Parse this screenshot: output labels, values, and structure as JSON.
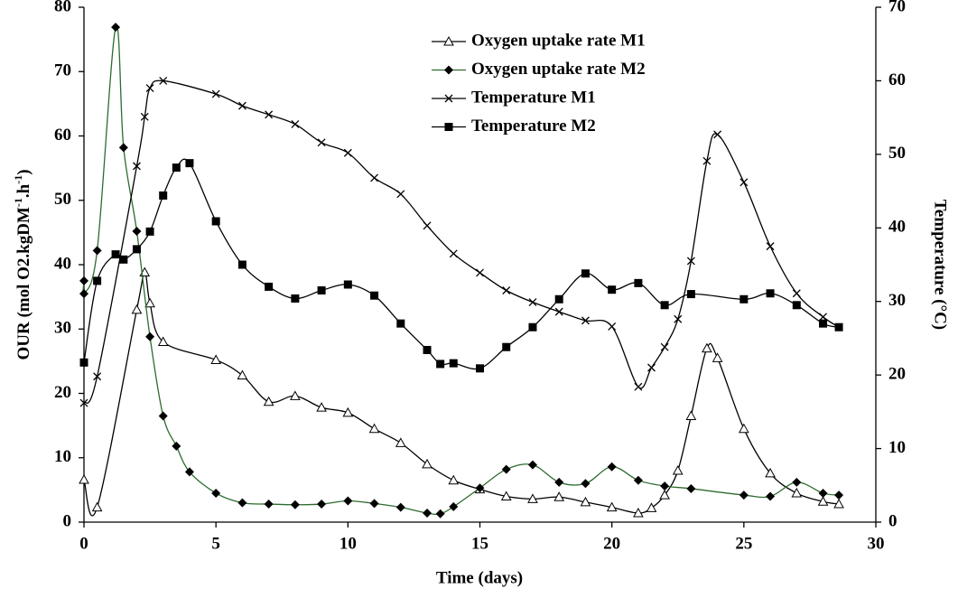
{
  "chart_data": {
    "type": "line",
    "xlabel": "Time (days)",
    "ylabel": [
      "OUR (mol O2.kgDM",
      "-1",
      ".h",
      "-1",
      ")"
    ],
    "y2label": "Temperature (°C)",
    "xlim": [
      0,
      30
    ],
    "xticks": [
      0,
      5,
      10,
      15,
      20,
      25,
      30
    ],
    "ylim": [
      0,
      80
    ],
    "yticks": [
      0,
      10,
      20,
      30,
      40,
      50,
      60,
      70,
      80
    ],
    "y2lim": [
      0,
      70
    ],
    "y2ticks": [
      0,
      10,
      20,
      30,
      40,
      50,
      60,
      70
    ],
    "series": [
      {
        "name": "Oxygen uptake rate M1",
        "color": "#000000",
        "marker": "triangle-open",
        "x": [
          0,
          0.5,
          2,
          2.3,
          2.5,
          3,
          5,
          6,
          7,
          8,
          9,
          10,
          11,
          12,
          13,
          14,
          15,
          16,
          17,
          18,
          19,
          20,
          21,
          21.5,
          22,
          22.5,
          23,
          23.6,
          24,
          25,
          26,
          27,
          28,
          28.6
        ],
        "values": [
          6.6,
          2.3,
          33,
          38.8,
          34,
          28,
          25.2,
          22.8,
          18.7,
          19.6,
          17.8,
          17,
          14.5,
          12.3,
          9,
          6.5,
          5.1,
          4,
          3.6,
          3.9,
          3.1,
          2.3,
          1.4,
          2.2,
          4.2,
          8,
          16.5,
          27,
          25.5,
          14.5,
          7.6,
          4.5,
          3.2,
          2.8
        ]
      },
      {
        "name": "Oxygen uptake rate M2",
        "color": "#2e6b2e",
        "marker": "diamond",
        "x": [
          0,
          0,
          0.5,
          1.2,
          1.5,
          2,
          2.5,
          3,
          3.5,
          4,
          5,
          6,
          7,
          8,
          9,
          10,
          11,
          12,
          13,
          13.5,
          14,
          15,
          16,
          17,
          18,
          19,
          20,
          21,
          22,
          23,
          25,
          26,
          27,
          28,
          28.6
        ],
        "values": [
          37.5,
          35.5,
          42.2,
          76.9,
          58.2,
          45.2,
          28.8,
          16.5,
          11.8,
          7.8,
          4.5,
          3,
          2.8,
          2.7,
          2.8,
          3.3,
          2.9,
          2.3,
          1.4,
          1.3,
          2.4,
          5.3,
          8.2,
          8.9,
          6.2,
          6,
          8.6,
          6.5,
          5.6,
          5.2,
          4.2,
          4,
          6.2,
          4.5,
          4.2
        ]
      },
      {
        "name": "Temperature M1",
        "color": "#000000",
        "marker": "x",
        "axis": "y2",
        "x": [
          0,
          0.5,
          2,
          2.3,
          2.5,
          3,
          5,
          6,
          7,
          8,
          9,
          10,
          11,
          12,
          13,
          14,
          15,
          16,
          17,
          18,
          19,
          20,
          21,
          21.5,
          22,
          22.5,
          23,
          23.6,
          24,
          25,
          26,
          27,
          28,
          28.6
        ],
        "values": [
          16.2,
          19.8,
          48.4,
          55.1,
          59,
          60,
          58.2,
          56.6,
          55.4,
          54.1,
          51.6,
          50.2,
          46.8,
          44.6,
          40.3,
          36.5,
          33.9,
          31.5,
          29.9,
          28.6,
          27.4,
          26.6,
          18.4,
          21,
          23.8,
          27.6,
          35.5,
          49.1,
          52.7,
          46.2,
          37.5,
          31.1,
          27.9,
          26.5
        ]
      },
      {
        "name": "Temperature M2",
        "color": "#000000",
        "marker": "square",
        "axis": "y2",
        "x": [
          0,
          0.5,
          1.2,
          1.5,
          2,
          2.5,
          3,
          3.5,
          4,
          5,
          6,
          7,
          8,
          9,
          10,
          11,
          12,
          13,
          13.5,
          14,
          15,
          16,
          17,
          18,
          19,
          20,
          21,
          22,
          23,
          25,
          26,
          27,
          28,
          28.6
        ],
        "values": [
          21.7,
          32.8,
          36.4,
          35.7,
          37.1,
          39.5,
          44.4,
          48.2,
          48.8,
          40.9,
          35,
          32,
          30.4,
          31.5,
          32.3,
          30.8,
          27,
          23.4,
          21.5,
          21.6,
          20.9,
          23.8,
          26.5,
          30.3,
          33.8,
          31.6,
          32.5,
          29.5,
          31,
          30.3,
          31.1,
          29.5,
          27,
          26.5
        ]
      }
    ]
  }
}
